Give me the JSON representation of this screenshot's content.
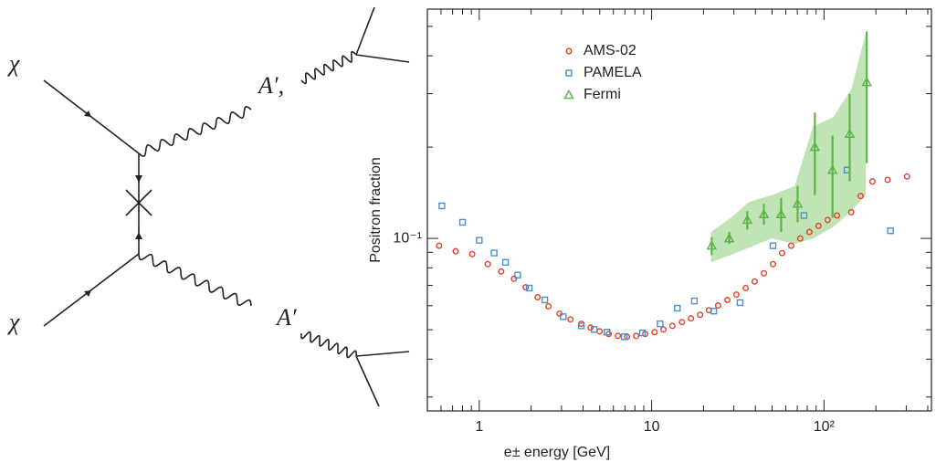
{
  "diagram": {
    "labels": [
      "χ",
      "χ",
      "A′,",
      "A′"
    ]
  },
  "chart_data": {
    "type": "scatter",
    "x_label": "e± energy [GeV]",
    "y_label": "Positron fraction",
    "xscale": "log",
    "yscale": "log",
    "legend": "upper left",
    "xlim": [
      0.5,
      420
    ],
    "ylim": [
      0.027,
      0.57
    ],
    "xticks": [
      1,
      10,
      {
        "value": 100,
        "label": "10²"
      }
    ],
    "yticks": [
      {
        "value": 0.1,
        "label": "10⁻¹"
      }
    ],
    "xminorticks": [
      0.6,
      0.7,
      0.8,
      0.9,
      2,
      3,
      4,
      5,
      6,
      7,
      8,
      9,
      20,
      30,
      40,
      50,
      60,
      70,
      80,
      90,
      200,
      300,
      400
    ],
    "yminorticks": [
      0.03,
      0.04,
      0.05,
      0.06,
      0.07,
      0.08,
      0.09,
      0.2,
      0.3,
      0.4,
      0.5
    ],
    "series": [
      {
        "name": "AMS-02",
        "color": "#e8402a",
        "marker": "circle",
        "x": [
          0.585,
          0.73,
          0.91,
          1.12,
          1.34,
          1.59,
          1.86,
          2.18,
          2.52,
          2.92,
          3.38,
          3.91,
          4.42,
          4.99,
          5.64,
          6.37,
          7.2,
          8.13,
          9.18,
          10.4,
          11.7,
          13.2,
          15.0,
          16.9,
          19.1,
          21.5,
          24.3,
          27.5,
          31.0,
          35.1,
          39.6,
          44.8,
          50.6,
          57.1,
          64.5,
          72.8,
          82.3,
          92.9,
          105,
          119,
          144,
          163,
          191,
          234,
          303
        ],
        "values": [
          0.0946,
          0.0907,
          0.0888,
          0.0823,
          0.0778,
          0.0736,
          0.069,
          0.064,
          0.0597,
          0.0565,
          0.0541,
          0.0523,
          0.0508,
          0.0494,
          0.0484,
          0.0477,
          0.0474,
          0.0477,
          0.0484,
          0.0491,
          0.0501,
          0.0515,
          0.053,
          0.0545,
          0.056,
          0.058,
          0.0601,
          0.0627,
          0.0653,
          0.0686,
          0.0721,
          0.0767,
          0.0823,
          0.0895,
          0.0946,
          0.1,
          0.105,
          0.11,
          0.115,
          0.119,
          0.122,
          0.138,
          0.154,
          0.156,
          0.16
        ]
      },
      {
        "name": "PAMELA",
        "color": "#4a90d0",
        "marker": "square",
        "x": [
          0.607,
          0.8,
          1.0,
          1.22,
          1.42,
          1.67,
          1.95,
          2.4,
          3.07,
          3.91,
          4.64,
          5.51,
          6.94,
          8.85,
          11.2,
          14.1,
          17.7,
          22.9,
          32.6,
          50.6,
          76.5,
          136,
          243
        ],
        "values": [
          0.128,
          0.113,
          0.0986,
          0.0895,
          0.0834,
          0.0757,
          0.0686,
          0.0627,
          0.0552,
          0.0515,
          0.0501,
          0.0491,
          0.0474,
          0.0488,
          0.0523,
          0.0589,
          0.0622,
          0.0576,
          0.0614,
          0.0946,
          0.119,
          0.168,
          0.106
        ]
      },
      {
        "name": "Fermi",
        "color": "#5cb547",
        "marker": "triangle",
        "x": [
          22.3,
          28.2,
          35.9,
          44.8,
          56.4,
          70.3,
          88.5,
          112,
          141,
          177
        ],
        "values": [
          0.0946,
          0.1,
          0.115,
          0.12,
          0.12,
          0.13,
          0.2,
          0.168,
          0.221,
          0.327
        ],
        "lower": [
          0.0882,
          0.0959,
          0.107,
          0.111,
          0.105,
          0.113,
          0.139,
          0.117,
          0.154,
          0.177
        ],
        "upper": [
          0.101,
          0.105,
          0.123,
          0.13,
          0.136,
          0.149,
          0.26,
          0.218,
          0.299,
          0.481
        ],
        "band_color": "#b5dfa8",
        "band": {
          "x": [
            22.1,
            28.8,
            36.8,
            49.9,
            67.7,
            86.4,
            113,
            144,
            175
          ],
          "lower": [
            0.0834,
            0.0882,
            0.0933,
            0.1,
            0.0959,
            0.1,
            0.109,
            0.123,
            0.139
          ],
          "upper": [
            0.105,
            0.117,
            0.132,
            0.139,
            0.149,
            0.234,
            0.251,
            0.31,
            0.478
          ]
        }
      }
    ]
  }
}
